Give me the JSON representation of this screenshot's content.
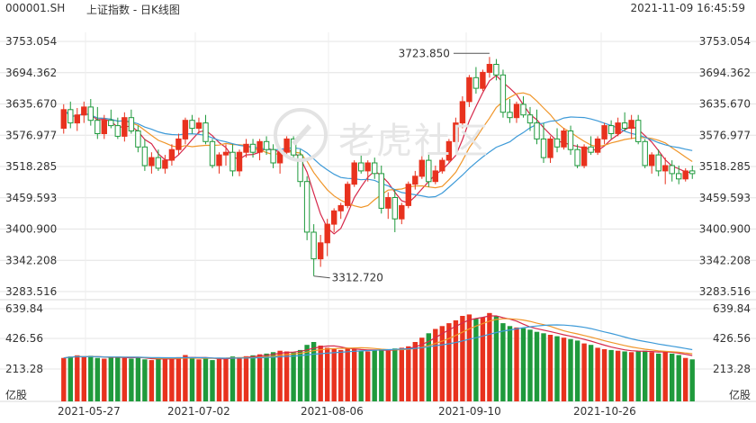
{
  "header": {
    "symbol": "000001.SH",
    "title": "上证指数 - 日K线图",
    "datetime": "2021-11-09 16:45:59"
  },
  "watermark": "老虎社区",
  "chart_data": {
    "type": "candlestick",
    "price_axis": {
      "ticks": [
        "3753.054",
        "3694.362",
        "3635.670",
        "3576.977",
        "3518.285",
        "3459.593",
        "3400.900",
        "3342.208",
        "3283.516"
      ],
      "min": 3283.516,
      "max": 3753.054
    },
    "volume_axis": {
      "ticks": [
        "639.84",
        "426.56",
        "213.28"
      ],
      "unit": "亿股",
      "max": 639.84
    },
    "x_labels": [
      "2021-05-27",
      "2021-07-02",
      "2021-08-06",
      "2021-09-10",
      "2021-10-26"
    ],
    "annotations": {
      "high": "3723.850",
      "low": "3312.720"
    },
    "colors": {
      "up": "#e8321e",
      "down": "#1f9a3c",
      "ma_fast": "#d6284a",
      "ma_mid": "#f0962a",
      "ma_slow": "#3d9ad8",
      "grid": "#e4e4e4"
    },
    "ohlc": [
      [
        3590,
        3635,
        3580,
        3625
      ],
      [
        3625,
        3640,
        3590,
        3600
      ],
      [
        3600,
        3628,
        3585,
        3615
      ],
      [
        3615,
        3640,
        3600,
        3630
      ],
      [
        3630,
        3645,
        3595,
        3605
      ],
      [
        3605,
        3630,
        3570,
        3580
      ],
      [
        3580,
        3615,
        3570,
        3605
      ],
      [
        3605,
        3625,
        3590,
        3595
      ],
      [
        3595,
        3610,
        3570,
        3575
      ],
      [
        3575,
        3620,
        3565,
        3610
      ],
      [
        3610,
        3625,
        3580,
        3585
      ],
      [
        3585,
        3595,
        3545,
        3555
      ],
      [
        3555,
        3570,
        3510,
        3520
      ],
      [
        3520,
        3545,
        3505,
        3535
      ],
      [
        3535,
        3550,
        3510,
        3515
      ],
      [
        3515,
        3540,
        3505,
        3530
      ],
      [
        3530,
        3560,
        3520,
        3550
      ],
      [
        3550,
        3580,
        3540,
        3570
      ],
      [
        3570,
        3610,
        3560,
        3605
      ],
      [
        3605,
        3615,
        3580,
        3590
      ],
      [
        3590,
        3610,
        3580,
        3600
      ],
      [
        3600,
        3615,
        3560,
        3565
      ],
      [
        3565,
        3570,
        3515,
        3520
      ],
      [
        3520,
        3545,
        3505,
        3540
      ],
      [
        3540,
        3560,
        3520,
        3545
      ],
      [
        3545,
        3560,
        3500,
        3510
      ],
      [
        3510,
        3550,
        3500,
        3545
      ],
      [
        3545,
        3570,
        3535,
        3560
      ],
      [
        3560,
        3570,
        3535,
        3545
      ],
      [
        3545,
        3570,
        3530,
        3565
      ],
      [
        3565,
        3575,
        3540,
        3550
      ],
      [
        3550,
        3560,
        3515,
        3525
      ],
      [
        3525,
        3550,
        3505,
        3545
      ],
      [
        3545,
        3575,
        3540,
        3570
      ],
      [
        3570,
        3575,
        3530,
        3540
      ],
      [
        3540,
        3550,
        3480,
        3490
      ],
      [
        3490,
        3500,
        3380,
        3395
      ],
      [
        3395,
        3410,
        3312.72,
        3345
      ],
      [
        3345,
        3390,
        3330,
        3375
      ],
      [
        3375,
        3420,
        3350,
        3410
      ],
      [
        3410,
        3440,
        3395,
        3435
      ],
      [
        3435,
        3450,
        3420,
        3445
      ],
      [
        3445,
        3490,
        3440,
        3485
      ],
      [
        3485,
        3530,
        3480,
        3525
      ],
      [
        3525,
        3540,
        3505,
        3510
      ],
      [
        3510,
        3530,
        3490,
        3525
      ],
      [
        3525,
        3535,
        3495,
        3505
      ],
      [
        3505,
        3520,
        3430,
        3440
      ],
      [
        3440,
        3470,
        3420,
        3460
      ],
      [
        3460,
        3475,
        3395,
        3420
      ],
      [
        3420,
        3450,
        3410,
        3445
      ],
      [
        3445,
        3490,
        3440,
        3485
      ],
      [
        3485,
        3510,
        3475,
        3500
      ],
      [
        3500,
        3540,
        3495,
        3530
      ],
      [
        3530,
        3545,
        3480,
        3490
      ],
      [
        3490,
        3520,
        3485,
        3510
      ],
      [
        3510,
        3535,
        3505,
        3530
      ],
      [
        3530,
        3570,
        3525,
        3565
      ],
      [
        3565,
        3610,
        3555,
        3600
      ],
      [
        3600,
        3650,
        3590,
        3640
      ],
      [
        3640,
        3690,
        3630,
        3685
      ],
      [
        3685,
        3705,
        3655,
        3665
      ],
      [
        3665,
        3700,
        3660,
        3695
      ],
      [
        3695,
        3723.85,
        3685,
        3710
      ],
      [
        3710,
        3720,
        3680,
        3690
      ],
      [
        3690,
        3700,
        3610,
        3620
      ],
      [
        3620,
        3645,
        3600,
        3610
      ],
      [
        3610,
        3640,
        3600,
        3635
      ],
      [
        3635,
        3650,
        3610,
        3615
      ],
      [
        3615,
        3630,
        3585,
        3600
      ],
      [
        3600,
        3625,
        3560,
        3570
      ],
      [
        3570,
        3600,
        3525,
        3535
      ],
      [
        3535,
        3575,
        3525,
        3570
      ],
      [
        3570,
        3590,
        3545,
        3555
      ],
      [
        3555,
        3590,
        3550,
        3585
      ],
      [
        3585,
        3595,
        3540,
        3550
      ],
      [
        3550,
        3560,
        3515,
        3520
      ],
      [
        3520,
        3560,
        3515,
        3555
      ],
      [
        3555,
        3575,
        3540,
        3545
      ],
      [
        3545,
        3575,
        3540,
        3570
      ],
      [
        3570,
        3600,
        3560,
        3595
      ],
      [
        3595,
        3605,
        3570,
        3580
      ],
      [
        3580,
        3610,
        3575,
        3600
      ],
      [
        3600,
        3620,
        3585,
        3590
      ],
      [
        3590,
        3615,
        3570,
        3605
      ],
      [
        3605,
        3615,
        3560,
        3565
      ],
      [
        3565,
        3570,
        3515,
        3520
      ],
      [
        3520,
        3545,
        3505,
        3540
      ],
      [
        3540,
        3550,
        3500,
        3510
      ],
      [
        3510,
        3535,
        3485,
        3520
      ],
      [
        3520,
        3530,
        3490,
        3505
      ],
      [
        3505,
        3520,
        3485,
        3495
      ],
      [
        3495,
        3515,
        3490,
        3510
      ],
      [
        3510,
        3520,
        3495,
        3505
      ]
    ],
    "volume": [
      300,
      310,
      318,
      305,
      315,
      300,
      295,
      305,
      310,
      300,
      295,
      305,
      290,
      285,
      292,
      295,
      300,
      305,
      320,
      298,
      290,
      302,
      285,
      295,
      300,
      310,
      305,
      312,
      318,
      325,
      330,
      340,
      350,
      345,
      338,
      355,
      390,
      410,
      385,
      370,
      360,
      355,
      365,
      360,
      350,
      345,
      355,
      360,
      350,
      365,
      370,
      380,
      410,
      440,
      470,
      500,
      520,
      540,
      560,
      590,
      600,
      570,
      580,
      610,
      590,
      540,
      520,
      510,
      505,
      495,
      480,
      470,
      460,
      450,
      440,
      430,
      420,
      400,
      390,
      370,
      360,
      355,
      350,
      345,
      340,
      345,
      350,
      340,
      330,
      345,
      330,
      320,
      300,
      290
    ]
  }
}
